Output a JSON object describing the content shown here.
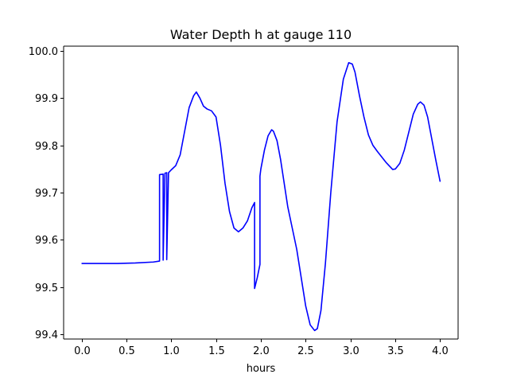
{
  "chart_data": {
    "type": "line",
    "title": "Water Depth h at gauge 110",
    "xlabel": "hours",
    "ylabel": "",
    "xlim": [
      -0.2,
      4.2
    ],
    "ylim": [
      99.39,
      100.01
    ],
    "xticks": [
      0.0,
      0.5,
      1.0,
      1.5,
      2.0,
      2.5,
      3.0,
      3.5,
      4.0
    ],
    "xtick_labels": [
      "0.0",
      "0.5",
      "1.0",
      "1.5",
      "2.0",
      "2.5",
      "3.0",
      "3.5",
      "4.0"
    ],
    "yticks": [
      99.4,
      99.5,
      99.6,
      99.7,
      99.8,
      99.9,
      100.0
    ],
    "ytick_labels": [
      "99.4",
      "99.5",
      "99.6",
      "99.7",
      "99.8",
      "99.9",
      "100.0"
    ],
    "grid": false,
    "legend": "none",
    "series": [
      {
        "color": "#0000ff",
        "x": [
          0.0,
          0.2,
          0.4,
          0.6,
          0.8,
          0.87,
          0.87,
          0.91,
          0.91,
          0.93,
          0.93,
          0.95,
          0.95,
          0.97,
          0.97,
          1.0,
          1.05,
          1.1,
          1.15,
          1.2,
          1.25,
          1.28,
          1.32,
          1.36,
          1.4,
          1.45,
          1.5,
          1.55,
          1.6,
          1.65,
          1.7,
          1.75,
          1.8,
          1.85,
          1.9,
          1.93,
          1.93,
          1.96,
          1.99,
          1.99,
          2.0,
          2.04,
          2.08,
          2.12,
          2.14,
          2.18,
          2.22,
          2.26,
          2.3,
          2.35,
          2.4,
          2.45,
          2.5,
          2.55,
          2.6,
          2.63,
          2.67,
          2.72,
          2.78,
          2.85,
          2.92,
          2.98,
          3.02,
          3.05,
          3.1,
          3.15,
          3.2,
          3.25,
          3.3,
          3.4,
          3.47,
          3.5,
          3.55,
          3.6,
          3.65,
          3.7,
          3.75,
          3.78,
          3.82,
          3.86,
          3.9,
          3.95,
          4.0
        ],
        "y": [
          99.55,
          99.55,
          99.55,
          99.551,
          99.553,
          99.555,
          99.738,
          99.739,
          99.557,
          99.741,
          99.741,
          99.742,
          99.558,
          99.742,
          99.742,
          99.748,
          99.757,
          99.78,
          99.83,
          99.88,
          99.905,
          99.913,
          99.9,
          99.883,
          99.877,
          99.873,
          99.86,
          99.8,
          99.72,
          99.66,
          99.625,
          99.617,
          99.625,
          99.64,
          99.668,
          99.679,
          99.497,
          99.52,
          99.548,
          99.735,
          99.75,
          99.79,
          99.82,
          99.833,
          99.83,
          99.81,
          99.77,
          99.72,
          99.67,
          99.625,
          99.58,
          99.52,
          99.46,
          99.42,
          99.408,
          99.412,
          99.45,
          99.55,
          99.7,
          99.85,
          99.94,
          99.975,
          99.972,
          99.955,
          99.905,
          99.86,
          99.822,
          99.8,
          99.787,
          99.763,
          99.749,
          99.75,
          99.762,
          99.79,
          99.828,
          99.866,
          99.887,
          99.892,
          99.885,
          99.86,
          99.82,
          99.77,
          99.723
        ]
      }
    ]
  }
}
